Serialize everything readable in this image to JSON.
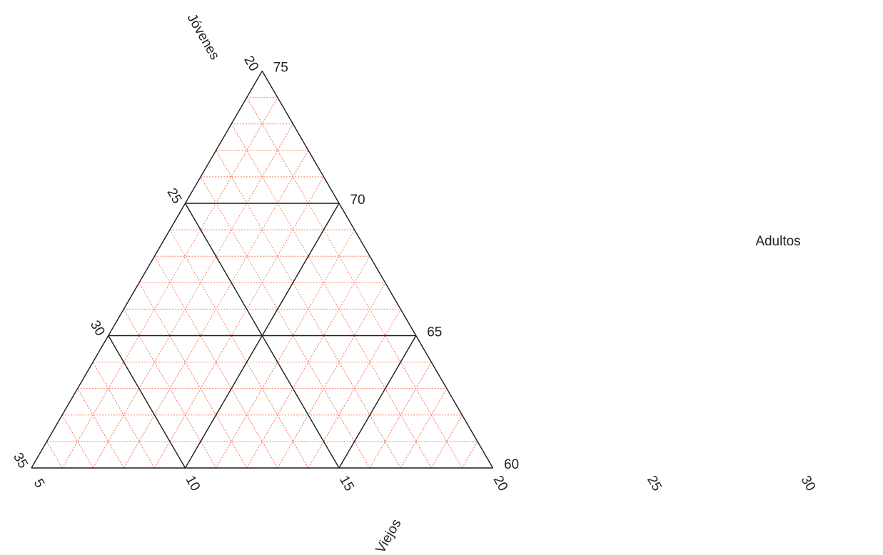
{
  "chart_data": {
    "type": "ternary",
    "axes": {
      "jovenes": {
        "label": "Jóvenes",
        "range": [
          20,
          35
        ],
        "ticks": [
          20,
          25,
          30,
          35
        ],
        "direction": "increases toward bottom-left"
      },
      "adultos": {
        "label": "Adultos",
        "range": [
          60,
          75
        ],
        "ticks": [
          75,
          70,
          65,
          60
        ],
        "direction": "increases toward top"
      },
      "viejos": {
        "label": "Viejos",
        "range": [
          5,
          30
        ],
        "ticks": [
          5,
          10,
          15,
          20,
          25,
          30
        ],
        "direction": "increases toward right"
      }
    },
    "grid": {
      "major_step": 5,
      "minor_step": 1,
      "major_color": "#1a1a1a",
      "minor_color": "#f5795e"
    },
    "plotted_points": []
  }
}
